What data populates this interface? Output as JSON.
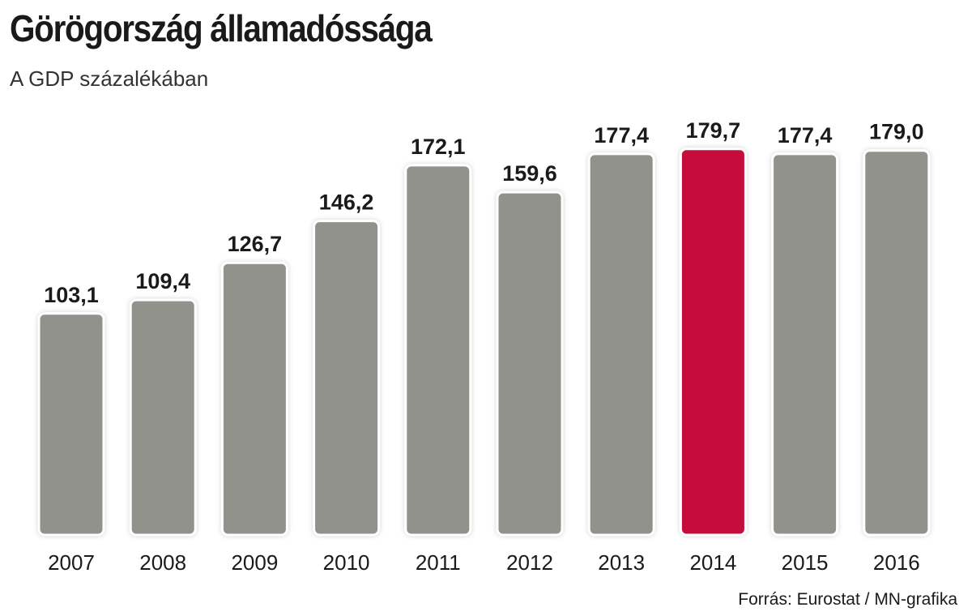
{
  "title": "Görögország államadóssága",
  "subtitle": "A GDP százalékában",
  "source": "Forrás: Eurostat / MN-grafika",
  "colors": {
    "bar": "#91928c",
    "highlight": "#c40d3c",
    "bar_outline": "#ffffff"
  },
  "chart_data": {
    "type": "bar",
    "title": "Görögország államadóssága",
    "subtitle": "A GDP százalékában",
    "xlabel": "",
    "ylabel": "",
    "categories": [
      "2007",
      "2008",
      "2009",
      "2010",
      "2011",
      "2012",
      "2013",
      "2014",
      "2015",
      "2016"
    ],
    "values": [
      103.1,
      109.4,
      126.7,
      146.2,
      172.1,
      159.6,
      177.4,
      179.7,
      177.4,
      179.0
    ],
    "value_labels": [
      "103,1",
      "109,4",
      "126,7",
      "146,2",
      "172,1",
      "159,6",
      "177,4",
      "179,7",
      "177,4",
      "179,0"
    ],
    "highlight_category": "2014",
    "ylim": [
      0,
      180
    ],
    "grid": false,
    "legend": "none"
  }
}
